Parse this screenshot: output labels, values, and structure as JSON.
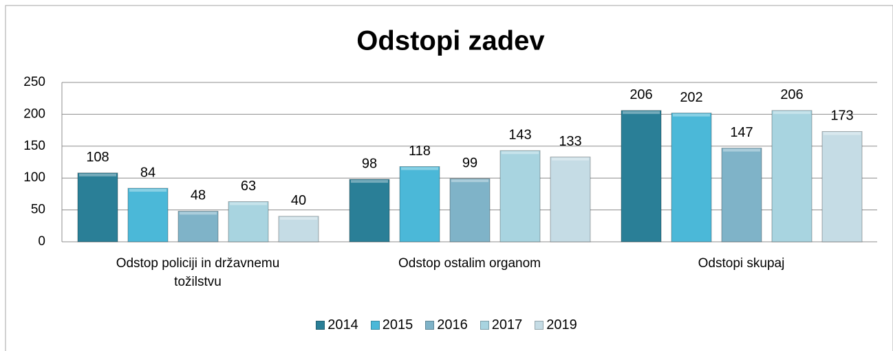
{
  "chart_data": {
    "type": "bar",
    "title": "Odstopi zadev",
    "categories": [
      "Odstop policiji in državnemu tožilstvu",
      "Odstop ostalim organom",
      "Odstopi skupaj"
    ],
    "series": [
      {
        "name": "2014",
        "color": "#2a7f97",
        "values": [
          108,
          98,
          206
        ]
      },
      {
        "name": "2015",
        "color": "#4bb8d8",
        "values": [
          84,
          118,
          202
        ]
      },
      {
        "name": "2016",
        "color": "#7fb3c8",
        "values": [
          48,
          99,
          147
        ]
      },
      {
        "name": "2017",
        "color": "#a8d4e0",
        "values": [
          63,
          143,
          206
        ]
      },
      {
        "name": "2019",
        "color": "#c5dce5",
        "values": [
          40,
          133,
          173
        ]
      }
    ],
    "ylim": [
      0,
      250
    ],
    "yticks": [
      0,
      50,
      100,
      150,
      200,
      250
    ],
    "grid": true,
    "legend": "bottom"
  }
}
